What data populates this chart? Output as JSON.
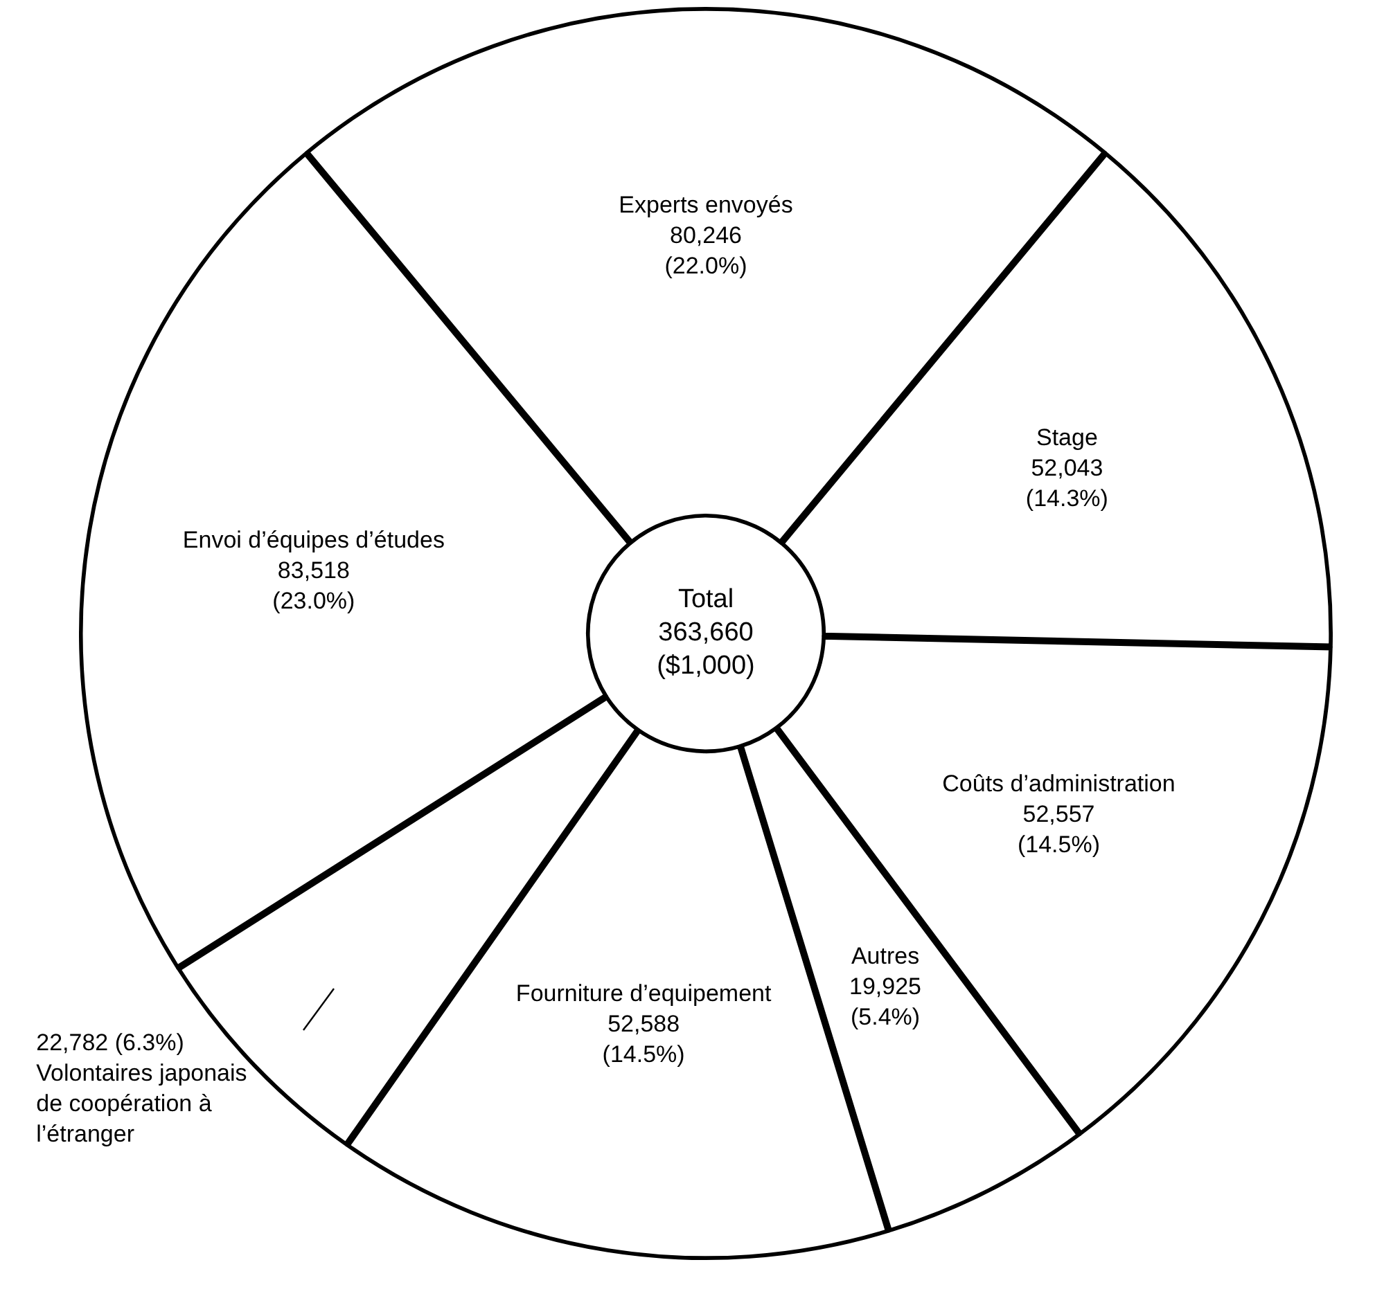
{
  "chart_data": {
    "type": "donut",
    "categories": [
      "Experts envoyés",
      "Stage",
      "Coûts d’administration",
      "Autres",
      "Fourniture d’equipement",
      "Volontaires japonais de coopération à l’étranger",
      "Envoi d’équipes d’études"
    ],
    "values": [
      80246,
      52043,
      52557,
      19925,
      52588,
      22782,
      83518
    ],
    "value_labels": [
      "80,246 (22.0%)",
      "52,043 (14.3%)",
      "52,557 (14.5%)",
      "19,925 (5.4%)",
      "52,588 (14.5%)",
      "22,782 (6.3%)",
      "83,518 (23.0%)"
    ],
    "colors": [
      "#ffffff",
      "#ffffff",
      "#ffffff",
      "#ffffff",
      "#ffffff",
      "#ffffff",
      "#ffffff"
    ],
    "annotations": [
      "Total 363,660 ($1,000)"
    ],
    "legend": false
  }
}
